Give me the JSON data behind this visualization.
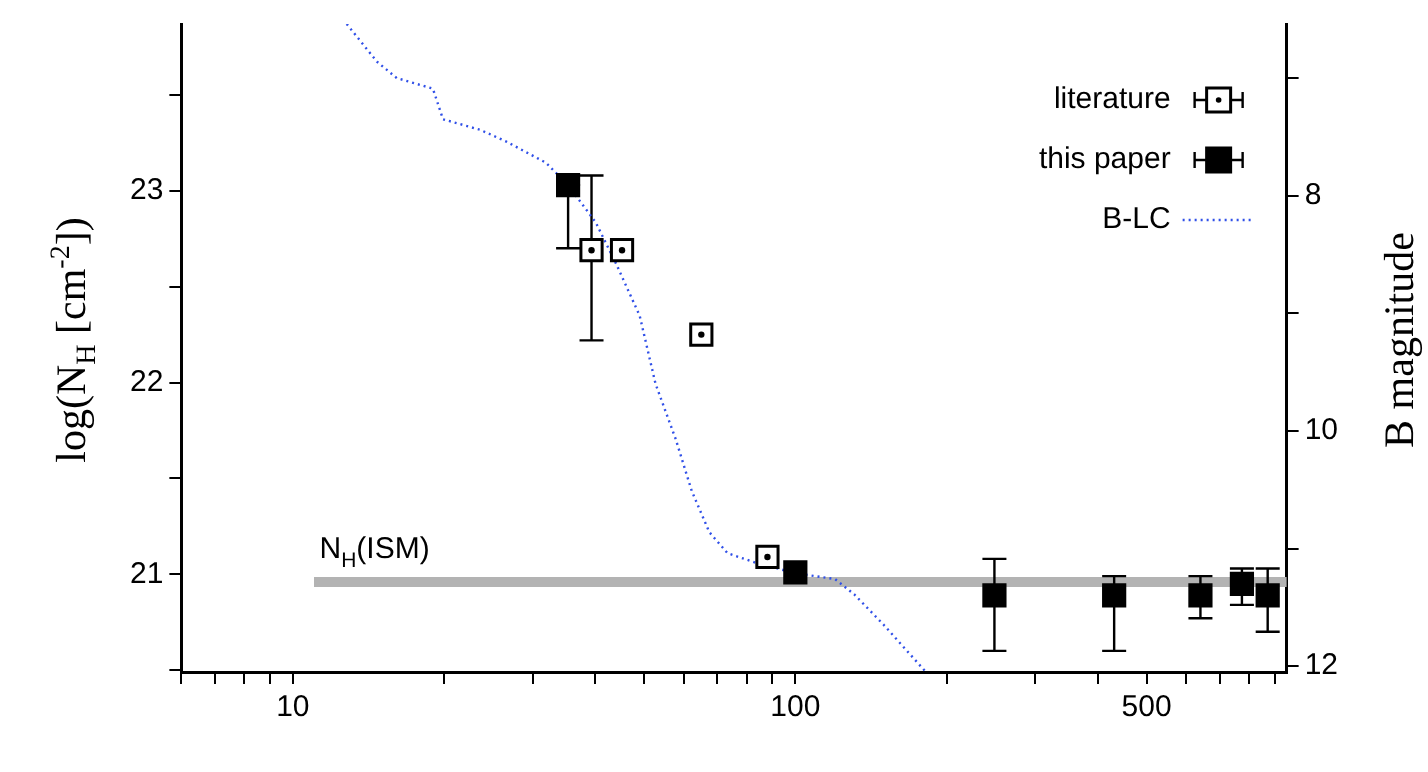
{
  "chart_data": {
    "type": "scatter",
    "ylabel": "log(N$_{H}$ [cm$^{-2}$])",
    "y2label": "B magnitude",
    "log": "x",
    "legend": "top right",
    "marker": "square",
    "xlim": [
      6,
      950
    ],
    "xticks": [
      {
        "value": 6,
        "label": null
      },
      {
        "value": 7,
        "label": null
      },
      {
        "value": 8,
        "label": null
      },
      {
        "value": 9,
        "label": null
      },
      10,
      {
        "value": 20,
        "label": null
      },
      {
        "value": 30,
        "label": null
      },
      {
        "value": 40,
        "label": null
      },
      {
        "value": 50,
        "label": null
      },
      {
        "value": 60,
        "label": null
      },
      {
        "value": 70,
        "label": null
      },
      {
        "value": 80,
        "label": null
      },
      {
        "value": 90,
        "label": null
      },
      100,
      {
        "value": 200,
        "label": null
      },
      {
        "value": 300,
        "label": null
      },
      {
        "value": 400,
        "label": null
      },
      500,
      {
        "value": 600,
        "label": null
      },
      {
        "value": 700,
        "label": null
      },
      {
        "value": 800,
        "label": null
      },
      {
        "value": 900,
        "label": null
      }
    ],
    "ylim": [
      20.49,
      23.87
    ],
    "yticks": [
      {
        "value": 20.5,
        "label": null
      },
      21,
      {
        "value": 21.5,
        "label": null
      },
      22,
      {
        "value": 22.5,
        "label": null
      },
      23,
      {
        "value": 23.5,
        "label": null
      }
    ],
    "y2lim": [
      12.05,
      6.54
    ],
    "y2ticks": [
      {
        "value": 7,
        "label": null
      },
      8,
      {
        "value": 9,
        "label": null
      },
      10,
      {
        "value": 11,
        "label": null
      },
      12
    ],
    "ref_lines": [
      {
        "axis": "y",
        "value": 20.96,
        "label": "N$_{H}$(ISM)",
        "color": "#b3b3b3"
      }
    ],
    "series": [
      {
        "name": "literature",
        "type": "scatter",
        "color": "#ffffff",
        "x": [
          39.3,
          45.2,
          65,
          88
        ],
        "values": [
          22.69,
          22.69,
          22.25,
          21.09
        ],
        "errors": [
          [
            22.22,
            23.08
          ],
          null,
          null,
          null
        ]
      },
      {
        "name": "this paper",
        "type": "scatter",
        "color": "#000000",
        "x": [
          35.3,
          100,
          249,
          431,
          640,
          774,
          871
        ],
        "values": [
          23.03,
          21.01,
          20.89,
          20.89,
          20.89,
          20.95,
          20.89
        ],
        "errors": [
          [
            22.7,
            23.03
          ],
          null,
          [
            20.6,
            21.08
          ],
          [
            20.6,
            20.99
          ],
          [
            20.77,
            20.99
          ],
          [
            20.84,
            21.03
          ],
          [
            20.7,
            21.03
          ]
        ]
      },
      {
        "name": "B-LC",
        "type": "line",
        "axis": "y2",
        "marker": "none",
        "line_style": "dotted",
        "color": "#3050e8",
        "x": [
          12.8,
          14.7,
          16.1,
          19.0,
          19.9,
          23.6,
          26.6,
          31.9,
          35.3,
          40.1,
          44.0,
          49,
          52.7,
          57.8,
          62.2,
          67.4,
          73.3,
          83.3,
          100,
          120,
          131,
          150,
          181
        ],
        "values": [
          6.54,
          6.86,
          7.0,
          7.09,
          7.35,
          7.44,
          7.54,
          7.72,
          7.91,
          8.23,
          8.58,
          9.02,
          9.6,
          10.07,
          10.51,
          10.86,
          11.04,
          11.12,
          11.21,
          11.26,
          11.39,
          11.65,
          12.04
        ]
      }
    ]
  }
}
